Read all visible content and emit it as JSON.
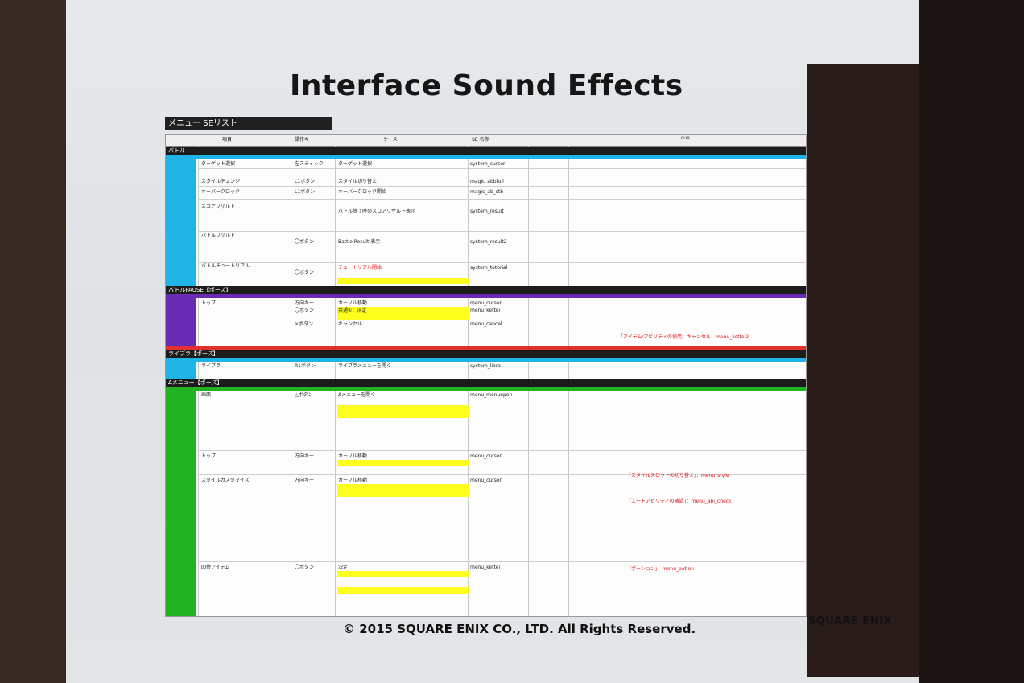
{
  "slide": {
    "title": "Interface Sound Effects",
    "list_title": "メニュー SEリスト",
    "copyright": "© 2015 SQUARE ENIX CO., LTD.  All Rights Reserved.",
    "brand": "SQUARE ENIX."
  },
  "sheet": {
    "sections": [
      {
        "label": "バトル",
        "color": "#1fb3e6"
      },
      {
        "label": "バトルPAUSE【ポーズ】",
        "color": "#6a2bb3"
      },
      {
        "label": "ライブラ【ポーズ】",
        "color": "#1fb3e6"
      },
      {
        "label": "Δメニュー【ポーズ】",
        "color": "#22b322"
      }
    ],
    "column_headers": [
      "項目",
      "操作キー",
      "ケース",
      "SE 名称",
      "cue"
    ],
    "battle_rows": [
      {
        "item": "ターゲット選択",
        "key": "左スティック",
        "case": "ターゲット選択",
        "se": "system_cursor"
      },
      {
        "item": "スタイルチェンジ",
        "key": "L1ボタン",
        "case": "スタイル切り替え",
        "se": "magic_abbfull"
      },
      {
        "item": "オーバークロック",
        "key": "L1ボタン",
        "case": "オーバークロック開始",
        "se": "magic_ab_stb"
      },
      {
        "item": "スコアリザルト",
        "key": "",
        "case": "バトル終了時のスコアリザルト表示",
        "se": "system_result"
      },
      {
        "item": "バトルリザルト",
        "key": "〇ボタン",
        "case": "Battle Result 表示",
        "se": "system_result2"
      },
      {
        "item": "バトルチュートリアル",
        "key": "〇ボタン",
        "case": "チュートリアル開始",
        "se": "system_tutorial"
      }
    ],
    "pause_rows": [
      {
        "item": "トップ",
        "key": "方向キー",
        "case": "カーソル移動",
        "se": "menu_cursor"
      },
      {
        "item": "",
        "key": "〇ボタン",
        "case": "共通①：決定",
        "se": "menu_kettei"
      },
      {
        "item": "",
        "key": "×ボタン",
        "case": "キャンセル",
        "se": "menu_cancel"
      }
    ],
    "libra_rows": [
      {
        "item": "ライブラ",
        "key": "R1ボタン",
        "case": "ライブラメニューを開く",
        "se": "system_libra"
      }
    ],
    "menu_rows": [
      {
        "item": "画面",
        "key": "△ボタン",
        "case": "Δメニューを開く",
        "se": "menu_menuopen"
      },
      {
        "item": "トップ",
        "key": "方向キー",
        "case": "カーソル移動",
        "se": "menu_cursor"
      },
      {
        "item": "スタイルカスタマイズ",
        "key": "方向キー",
        "case": "カーソル移動",
        "se": "menu_cursor"
      },
      {
        "item": "回復アイテム",
        "key": "〇ボタン",
        "case": "決定",
        "se": "menu_kettei"
      }
    ],
    "notes": [
      "「アイテム/アビリティの使用」キャンセル：menu_kettei2",
      "「スタイルスロットの切り替え」：menu_style",
      "「エートアビリティの確認」：menu_abi_check",
      "「ポーション」：menu_potion"
    ]
  }
}
